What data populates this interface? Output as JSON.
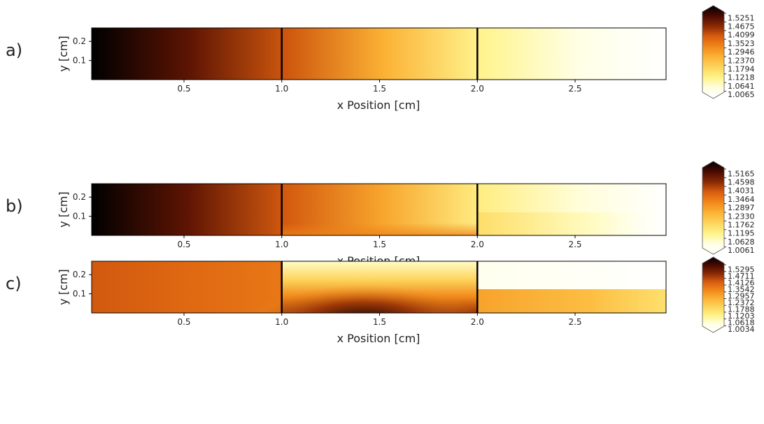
{
  "colors": {
    "stops": [
      "#000000",
      "#4a0a02",
      "#8a2a04",
      "#d95e10",
      "#f2891a",
      "#fbb437",
      "#fdd65e",
      "#fff48c",
      "#ffffe4",
      "#ffffff"
    ]
  },
  "chart_data": [
    {
      "type": "heatmap",
      "panel_label": "a)",
      "xlabel": "x Position [cm]",
      "ylabel": "y [cm]",
      "xlim": [
        0,
        3
      ],
      "ylim": [
        0,
        0.27
      ],
      "x_ticks": [
        0.5,
        1.0,
        1.5,
        2.0,
        2.5
      ],
      "x_tick_labels": [
        "0.5",
        "1.0",
        "1.5",
        "2.0",
        "2.5"
      ],
      "y_ticks": [
        0.1,
        0.2
      ],
      "y_tick_labels": [
        "0.1",
        "0.2"
      ],
      "region_boundaries_x": [
        1.0,
        2.0
      ],
      "colorbar_ticks": [
        "1.5251",
        "1.4675",
        "1.4099",
        "1.3523",
        "1.2946",
        "1.2370",
        "1.1794",
        "1.1218",
        "1.0641",
        "1.0065"
      ],
      "vmin": 1.0065,
      "vmax": 1.5251,
      "field_profile_along_x": {
        "x": [
          0.0,
          0.5,
          1.0,
          1.5,
          2.0,
          2.5,
          3.0
        ],
        "value": [
          1.53,
          1.45,
          1.36,
          1.24,
          1.12,
          1.06,
          1.0065
        ]
      },
      "grid": false
    },
    {
      "type": "heatmap",
      "panel_label": "b)",
      "xlabel": "x Position [cm]",
      "ylabel": "y [cm]",
      "xlim": [
        0,
        3
      ],
      "ylim": [
        0,
        0.27
      ],
      "x_ticks": [
        0.5,
        1.0,
        1.5,
        2.0,
        2.5
      ],
      "x_tick_labels": [
        "0.5",
        "1.0",
        "1.5",
        "2.0",
        "2.5"
      ],
      "y_ticks": [
        0.1,
        0.2
      ],
      "y_tick_labels": [
        "0.1",
        "0.2"
      ],
      "region_boundaries_x": [
        1.0,
        2.0
      ],
      "colorbar_ticks": [
        "1.5165",
        "1.4598",
        "1.4031",
        "1.3464",
        "1.2897",
        "1.2330",
        "1.1762",
        "1.1195",
        "1.0628",
        "1.0061"
      ],
      "vmin": 1.0061,
      "vmax": 1.5165,
      "field_profile_along_x": {
        "x": [
          0.0,
          0.5,
          1.0,
          1.5,
          2.0,
          2.5,
          3.0
        ],
        "value": [
          1.52,
          1.44,
          1.35,
          1.25,
          1.13,
          1.07,
          1.0061
        ]
      },
      "features": [
        "slightly elevated values near bottom edge for 1.0 < x < 2.0",
        "slightly elevated band for y < 0.12 in 2.0 < x < 2.9"
      ],
      "grid": false
    },
    {
      "type": "heatmap",
      "panel_label": "c)",
      "xlabel": "x Position [cm]",
      "ylabel": "y [cm]",
      "xlim": [
        0,
        3
      ],
      "ylim": [
        0,
        0.27
      ],
      "x_ticks": [
        0.5,
        1.0,
        1.5,
        2.0,
        2.5
      ],
      "x_tick_labels": [
        "0.5",
        "1.0",
        "1.5",
        "2.0",
        "2.5"
      ],
      "y_ticks": [
        0.1,
        0.2
      ],
      "y_tick_labels": [
        "0.1",
        "0.2"
      ],
      "region_boundaries_x": [
        1.0,
        2.0
      ],
      "colorbar_ticks": [
        "1.5295",
        "1.4711",
        "1.4126",
        "1.3542",
        "1.2957",
        "1.2372",
        "1.1788",
        "1.1203",
        "1.0618",
        "1.0034"
      ],
      "vmin": 1.0034,
      "vmax": 1.5295,
      "field_profile_along_x": {
        "x": [
          0.0,
          0.5,
          1.0
        ],
        "value": [
          1.36,
          1.34,
          1.32
        ]
      },
      "features": [
        "dark high-value region near bottom for 1.0 < x < 2.0 (about 1.5)",
        "light low-value region near top for 1.0 < x < 2.0",
        "2.0 < x < 3.0: medium band for y < 0.12, near-white above"
      ],
      "grid": false
    }
  ]
}
